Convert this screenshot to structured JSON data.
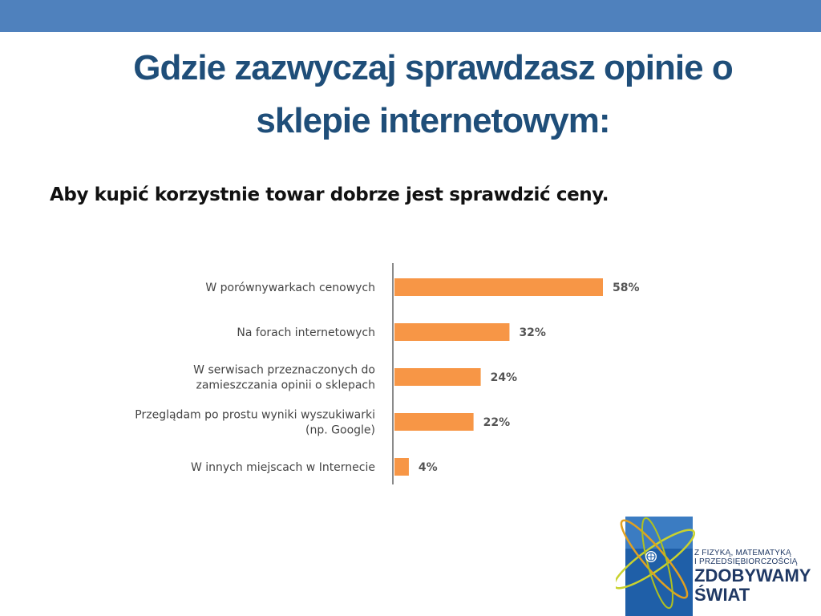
{
  "slide": {
    "title_line1": "Gdzie zazwyczaj sprawdzasz opinie o",
    "title_line2": "sklepie internetowym:",
    "subtitle": "Aby kupić korzystnie towar dobrze jest sprawdzić ceny."
  },
  "colors": {
    "top_bar": "#4f81bd",
    "title": "#1f4e79",
    "bar": "#f79646",
    "logo_blue": "#1f5fa8"
  },
  "chart_data": {
    "type": "bar",
    "orientation": "horizontal",
    "categories": [
      [
        "W porównywarkach cenowych"
      ],
      [
        "Na forach internetowych"
      ],
      [
        "W serwisach przeznaczonych do",
        "zamieszczania opinii o sklepach"
      ],
      [
        "Przeglądam po prostu wyniki wyszukiwarki",
        "(np. Google)"
      ],
      [
        "W innych miejscach w Internecie"
      ]
    ],
    "values": [
      58,
      32,
      24,
      22,
      4
    ],
    "value_labels": [
      "58%",
      "32%",
      "24%",
      "22%",
      "4%"
    ],
    "unit": "%",
    "xlim": [
      0,
      58
    ],
    "grid": false,
    "legend": "none"
  },
  "logo": {
    "icon": "atom-globe-logo-icon",
    "line1": "Z FIZYKĄ, MATEMATYKĄ",
    "line2": "I PRZEDSIĘBIORCZOŚCIĄ",
    "line3": "ZDOBYWAMY",
    "line4": "ŚWIAT"
  }
}
